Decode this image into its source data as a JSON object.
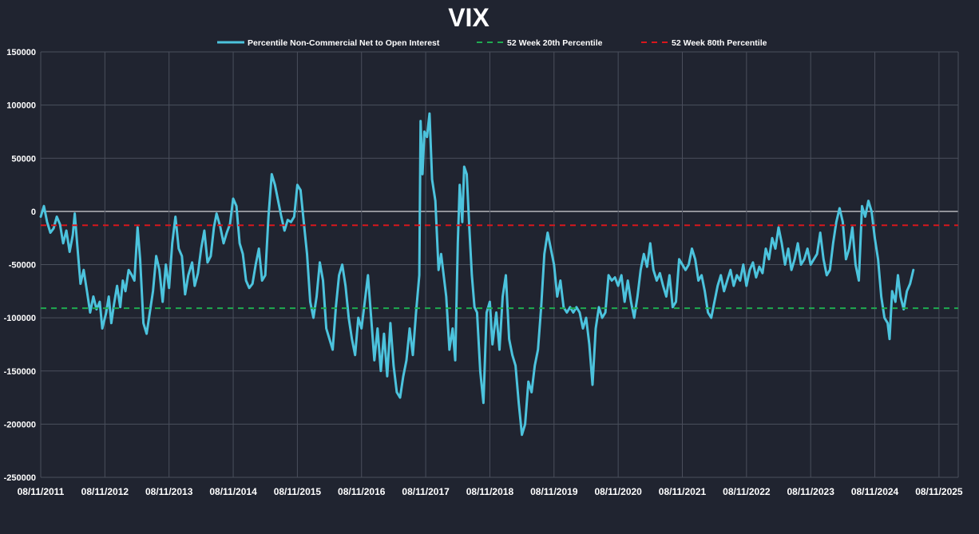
{
  "chart_data": {
    "type": "line",
    "title": "VIX",
    "xlabel": "",
    "ylabel": "",
    "ylim": [
      -250000,
      150000
    ],
    "y_ticks": [
      150000,
      100000,
      50000,
      0,
      -50000,
      -100000,
      -150000,
      -200000,
      -250000
    ],
    "y_tick_labels": [
      "150000",
      "100000",
      "50000",
      "0",
      "-50000",
      "-100000",
      "-150000",
      "-200000",
      "-250000"
    ],
    "x_ticks": [
      2011.6,
      2012.6,
      2013.6,
      2014.6,
      2015.6,
      2016.6,
      2017.6,
      2018.6,
      2019.6,
      2020.6,
      2021.6,
      2022.6,
      2023.6,
      2024.6,
      2025.6
    ],
    "x_tick_labels": [
      "08/11/2011",
      "08/11/2012",
      "08/11/2013",
      "08/11/2014",
      "08/11/2015",
      "08/11/2016",
      "08/11/2017",
      "08/11/2018",
      "08/11/2019",
      "08/11/2020",
      "08/11/2021",
      "08/11/2022",
      "08/11/2023",
      "08/11/2024",
      "08/11/2025"
    ],
    "xlim": [
      2011.6,
      2025.9
    ],
    "grid": true,
    "legend_position": "top",
    "series": [
      {
        "name": "Percentile Non-Commercial Net to Open Interest",
        "color": "#4cc3dd",
        "style": "solid",
        "points": [
          [
            2011.6,
            -5000
          ],
          [
            2011.65,
            5000
          ],
          [
            2011.7,
            -10000
          ],
          [
            2011.75,
            -20000
          ],
          [
            2011.8,
            -16000
          ],
          [
            2011.85,
            -5000
          ],
          [
            2011.9,
            -12000
          ],
          [
            2011.95,
            -30000
          ],
          [
            2012.0,
            -18000
          ],
          [
            2012.05,
            -38000
          ],
          [
            2012.1,
            -22000
          ],
          [
            2012.13,
            -2000
          ],
          [
            2012.17,
            -32000
          ],
          [
            2012.22,
            -68000
          ],
          [
            2012.27,
            -55000
          ],
          [
            2012.32,
            -75000
          ],
          [
            2012.37,
            -95000
          ],
          [
            2012.42,
            -80000
          ],
          [
            2012.47,
            -92000
          ],
          [
            2012.52,
            -85000
          ],
          [
            2012.56,
            -110000
          ],
          [
            2012.62,
            -95000
          ],
          [
            2012.66,
            -80000
          ],
          [
            2012.7,
            -105000
          ],
          [
            2012.74,
            -88000
          ],
          [
            2012.79,
            -70000
          ],
          [
            2012.84,
            -90000
          ],
          [
            2012.88,
            -65000
          ],
          [
            2012.92,
            -75000
          ],
          [
            2012.97,
            -55000
          ],
          [
            2013.02,
            -60000
          ],
          [
            2013.06,
            -65000
          ],
          [
            2013.11,
            -15000
          ],
          [
            2013.15,
            -45000
          ],
          [
            2013.2,
            -105000
          ],
          [
            2013.25,
            -115000
          ],
          [
            2013.3,
            -95000
          ],
          [
            2013.35,
            -75000
          ],
          [
            2013.4,
            -42000
          ],
          [
            2013.45,
            -55000
          ],
          [
            2013.5,
            -85000
          ],
          [
            2013.55,
            -50000
          ],
          [
            2013.6,
            -72000
          ],
          [
            2013.65,
            -30000
          ],
          [
            2013.7,
            -5000
          ],
          [
            2013.75,
            -35000
          ],
          [
            2013.8,
            -42000
          ],
          [
            2013.85,
            -78000
          ],
          [
            2013.9,
            -60000
          ],
          [
            2013.96,
            -48000
          ],
          [
            2014.0,
            -70000
          ],
          [
            2014.05,
            -58000
          ],
          [
            2014.1,
            -35000
          ],
          [
            2014.15,
            -18000
          ],
          [
            2014.2,
            -48000
          ],
          [
            2014.25,
            -42000
          ],
          [
            2014.3,
            -15000
          ],
          [
            2014.34,
            -2000
          ],
          [
            2014.4,
            -15000
          ],
          [
            2014.45,
            -30000
          ],
          [
            2014.5,
            -20000
          ],
          [
            2014.55,
            -12000
          ],
          [
            2014.6,
            12000
          ],
          [
            2014.65,
            5000
          ],
          [
            2014.7,
            -30000
          ],
          [
            2014.75,
            -40000
          ],
          [
            2014.8,
            -65000
          ],
          [
            2014.85,
            -72000
          ],
          [
            2014.9,
            -68000
          ],
          [
            2014.95,
            -50000
          ],
          [
            2015.0,
            -35000
          ],
          [
            2015.05,
            -65000
          ],
          [
            2015.1,
            -60000
          ],
          [
            2015.15,
            -5000
          ],
          [
            2015.2,
            35000
          ],
          [
            2015.25,
            25000
          ],
          [
            2015.3,
            10000
          ],
          [
            2015.35,
            -5000
          ],
          [
            2015.4,
            -18000
          ],
          [
            2015.45,
            -8000
          ],
          [
            2015.5,
            -10000
          ],
          [
            2015.55,
            -5000
          ],
          [
            2015.6,
            25000
          ],
          [
            2015.65,
            20000
          ],
          [
            2015.7,
            -10000
          ],
          [
            2015.75,
            -40000
          ],
          [
            2015.8,
            -85000
          ],
          [
            2015.85,
            -100000
          ],
          [
            2015.9,
            -80000
          ],
          [
            2015.95,
            -48000
          ],
          [
            2016.0,
            -65000
          ],
          [
            2016.05,
            -110000
          ],
          [
            2016.1,
            -120000
          ],
          [
            2016.15,
            -130000
          ],
          [
            2016.2,
            -90000
          ],
          [
            2016.25,
            -60000
          ],
          [
            2016.3,
            -50000
          ],
          [
            2016.35,
            -70000
          ],
          [
            2016.4,
            -100000
          ],
          [
            2016.45,
            -120000
          ],
          [
            2016.5,
            -135000
          ],
          [
            2016.55,
            -100000
          ],
          [
            2016.6,
            -110000
          ],
          [
            2016.65,
            -85000
          ],
          [
            2016.7,
            -60000
          ],
          [
            2016.75,
            -100000
          ],
          [
            2016.8,
            -140000
          ],
          [
            2016.85,
            -110000
          ],
          [
            2016.9,
            -150000
          ],
          [
            2016.95,
            -115000
          ],
          [
            2017.0,
            -155000
          ],
          [
            2017.05,
            -105000
          ],
          [
            2017.1,
            -145000
          ],
          [
            2017.15,
            -170000
          ],
          [
            2017.2,
            -175000
          ],
          [
            2017.25,
            -155000
          ],
          [
            2017.3,
            -140000
          ],
          [
            2017.35,
            -110000
          ],
          [
            2017.4,
            -135000
          ],
          [
            2017.45,
            -95000
          ],
          [
            2017.5,
            -60000
          ],
          [
            2017.52,
            85000
          ],
          [
            2017.55,
            35000
          ],
          [
            2017.58,
            75000
          ],
          [
            2017.62,
            70000
          ],
          [
            2017.66,
            92000
          ],
          [
            2017.7,
            30000
          ],
          [
            2017.75,
            10000
          ],
          [
            2017.8,
            -55000
          ],
          [
            2017.84,
            -40000
          ],
          [
            2017.88,
            -60000
          ],
          [
            2017.92,
            -80000
          ],
          [
            2017.97,
            -130000
          ],
          [
            2018.02,
            -110000
          ],
          [
            2018.06,
            -140000
          ],
          [
            2018.1,
            -30000
          ],
          [
            2018.13,
            25000
          ],
          [
            2018.17,
            -10000
          ],
          [
            2018.2,
            42000
          ],
          [
            2018.24,
            35000
          ],
          [
            2018.28,
            -15000
          ],
          [
            2018.32,
            -60000
          ],
          [
            2018.36,
            -90000
          ],
          [
            2018.4,
            -95000
          ],
          [
            2018.45,
            -150000
          ],
          [
            2018.5,
            -180000
          ],
          [
            2018.55,
            -95000
          ],
          [
            2018.6,
            -85000
          ],
          [
            2018.64,
            -125000
          ],
          [
            2018.7,
            -95000
          ],
          [
            2018.75,
            -130000
          ],
          [
            2018.8,
            -80000
          ],
          [
            2018.85,
            -60000
          ],
          [
            2018.9,
            -120000
          ],
          [
            2018.95,
            -135000
          ],
          [
            2019.0,
            -145000
          ],
          [
            2019.05,
            -180000
          ],
          [
            2019.1,
            -210000
          ],
          [
            2019.15,
            -200000
          ],
          [
            2019.2,
            -160000
          ],
          [
            2019.25,
            -170000
          ],
          [
            2019.3,
            -145000
          ],
          [
            2019.35,
            -130000
          ],
          [
            2019.4,
            -90000
          ],
          [
            2019.45,
            -40000
          ],
          [
            2019.5,
            -20000
          ],
          [
            2019.55,
            -35000
          ],
          [
            2019.6,
            -50000
          ],
          [
            2019.65,
            -80000
          ],
          [
            2019.7,
            -65000
          ],
          [
            2019.75,
            -90000
          ],
          [
            2019.8,
            -95000
          ],
          [
            2019.85,
            -90000
          ],
          [
            2019.9,
            -95000
          ],
          [
            2019.95,
            -90000
          ],
          [
            2020.0,
            -95000
          ],
          [
            2020.05,
            -110000
          ],
          [
            2020.1,
            -100000
          ],
          [
            2020.15,
            -125000
          ],
          [
            2020.2,
            -163000
          ],
          [
            2020.25,
            -110000
          ],
          [
            2020.3,
            -90000
          ],
          [
            2020.35,
            -100000
          ],
          [
            2020.4,
            -95000
          ],
          [
            2020.45,
            -60000
          ],
          [
            2020.5,
            -65000
          ],
          [
            2020.55,
            -62000
          ],
          [
            2020.6,
            -70000
          ],
          [
            2020.65,
            -60000
          ],
          [
            2020.7,
            -85000
          ],
          [
            2020.75,
            -65000
          ],
          [
            2020.8,
            -85000
          ],
          [
            2020.85,
            -100000
          ],
          [
            2020.9,
            -80000
          ],
          [
            2020.95,
            -55000
          ],
          [
            2021.0,
            -40000
          ],
          [
            2021.05,
            -52000
          ],
          [
            2021.1,
            -30000
          ],
          [
            2021.15,
            -55000
          ],
          [
            2021.2,
            -65000
          ],
          [
            2021.25,
            -58000
          ],
          [
            2021.3,
            -70000
          ],
          [
            2021.35,
            -80000
          ],
          [
            2021.4,
            -60000
          ],
          [
            2021.45,
            -90000
          ],
          [
            2021.5,
            -85000
          ],
          [
            2021.55,
            -45000
          ],
          [
            2021.6,
            -50000
          ],
          [
            2021.65,
            -55000
          ],
          [
            2021.7,
            -50000
          ],
          [
            2021.75,
            -35000
          ],
          [
            2021.8,
            -45000
          ],
          [
            2021.85,
            -65000
          ],
          [
            2021.9,
            -60000
          ],
          [
            2021.95,
            -75000
          ],
          [
            2022.0,
            -95000
          ],
          [
            2022.05,
            -100000
          ],
          [
            2022.1,
            -85000
          ],
          [
            2022.15,
            -70000
          ],
          [
            2022.2,
            -60000
          ],
          [
            2022.25,
            -75000
          ],
          [
            2022.3,
            -65000
          ],
          [
            2022.35,
            -55000
          ],
          [
            2022.4,
            -70000
          ],
          [
            2022.45,
            -60000
          ],
          [
            2022.5,
            -65000
          ],
          [
            2022.55,
            -50000
          ],
          [
            2022.6,
            -70000
          ],
          [
            2022.65,
            -55000
          ],
          [
            2022.7,
            -48000
          ],
          [
            2022.75,
            -62000
          ],
          [
            2022.8,
            -52000
          ],
          [
            2022.85,
            -58000
          ],
          [
            2022.9,
            -35000
          ],
          [
            2022.95,
            -45000
          ],
          [
            2023.0,
            -25000
          ],
          [
            2023.05,
            -35000
          ],
          [
            2023.1,
            -15000
          ],
          [
            2023.15,
            -30000
          ],
          [
            2023.2,
            -50000
          ],
          [
            2023.25,
            -35000
          ],
          [
            2023.3,
            -55000
          ],
          [
            2023.35,
            -45000
          ],
          [
            2023.4,
            -30000
          ],
          [
            2023.45,
            -50000
          ],
          [
            2023.5,
            -45000
          ],
          [
            2023.55,
            -35000
          ],
          [
            2023.6,
            -50000
          ],
          [
            2023.65,
            -45000
          ],
          [
            2023.7,
            -40000
          ],
          [
            2023.75,
            -20000
          ],
          [
            2023.8,
            -45000
          ],
          [
            2023.85,
            -60000
          ],
          [
            2023.9,
            -55000
          ],
          [
            2023.95,
            -30000
          ],
          [
            2024.0,
            -10000
          ],
          [
            2024.05,
            3000
          ],
          [
            2024.1,
            -10000
          ],
          [
            2024.15,
            -45000
          ],
          [
            2024.2,
            -35000
          ],
          [
            2024.25,
            -15000
          ],
          [
            2024.3,
            -50000
          ],
          [
            2024.35,
            -65000
          ],
          [
            2024.4,
            5000
          ],
          [
            2024.45,
            -5000
          ],
          [
            2024.5,
            10000
          ],
          [
            2024.55,
            0
          ],
          [
            2024.6,
            -25000
          ],
          [
            2024.65,
            -45000
          ],
          [
            2024.7,
            -80000
          ],
          [
            2024.75,
            -100000
          ],
          [
            2024.8,
            -105000
          ],
          [
            2024.83,
            -120000
          ],
          [
            2024.87,
            -75000
          ],
          [
            2024.92,
            -85000
          ],
          [
            2024.96,
            -60000
          ],
          [
            2025.0,
            -80000
          ],
          [
            2025.05,
            -92000
          ],
          [
            2025.1,
            -75000
          ],
          [
            2025.15,
            -68000
          ],
          [
            2025.2,
            -55000
          ]
        ]
      },
      {
        "name": "52 Week 20th Percentile",
        "color": "#1faa50",
        "style": "dashed",
        "value": -91000
      },
      {
        "name": "52 Week 80th Percentile",
        "color": "#d8161c",
        "style": "dashed",
        "value": -13000
      }
    ]
  }
}
